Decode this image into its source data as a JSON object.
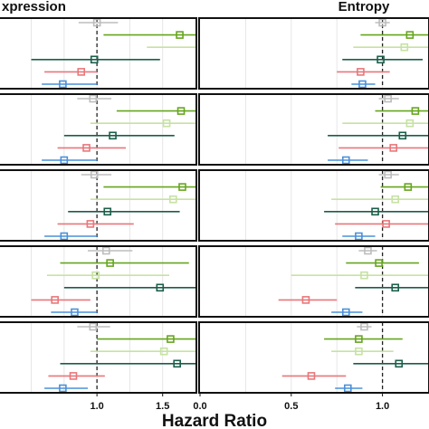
{
  "chart_data": {
    "type": "forest",
    "xlabel": "Hazard Ratio",
    "reference_line": 1.0,
    "grid": true,
    "series_colors": [
      "#bdbdbd",
      "#66a61e",
      "#c6e2a3",
      "#1b5e4a",
      "#e8777a",
      "#4a90d9"
    ],
    "panels": [
      {
        "title": "xpression",
        "xlim": [
          0.2,
          1.75
        ],
        "ticks": [
          {
            "value": 1.0,
            "label": "1.0"
          },
          {
            "value": 1.5,
            "label": "1.5"
          }
        ],
        "rows": [
          [
            {
              "hr": 1.0,
              "lo": 0.86,
              "hi": 1.16
            },
            {
              "hr": 1.63,
              "lo": 1.05,
              "hi": 2.4
            },
            {
              "hr": 1.84,
              "lo": 1.38,
              "hi": 2.4
            },
            {
              "hr": 0.98,
              "lo": 0.5,
              "hi": 1.48
            },
            {
              "hr": 0.88,
              "lo": 0.6,
              "hi": 1.0
            },
            {
              "hr": 0.74,
              "lo": 0.58,
              "hi": 1.0
            }
          ],
          [
            {
              "hr": 0.97,
              "lo": 0.85,
              "hi": 1.11
            },
            {
              "hr": 1.64,
              "lo": 1.15,
              "hi": 2.4
            },
            {
              "hr": 1.53,
              "lo": 0.95,
              "hi": 2.4
            },
            {
              "hr": 1.12,
              "lo": 0.75,
              "hi": 1.59
            },
            {
              "hr": 0.92,
              "lo": 0.7,
              "hi": 1.22
            },
            {
              "hr": 0.75,
              "lo": 0.58,
              "hi": 1.0
            }
          ],
          [
            {
              "hr": 0.98,
              "lo": 0.88,
              "hi": 1.11
            },
            {
              "hr": 1.65,
              "lo": 1.05,
              "hi": 2.4
            },
            {
              "hr": 1.58,
              "lo": 0.95,
              "hi": 2.4
            },
            {
              "hr": 1.08,
              "lo": 0.78,
              "hi": 1.63
            },
            {
              "hr": 0.95,
              "lo": 0.7,
              "hi": 1.28
            },
            {
              "hr": 0.75,
              "lo": 0.6,
              "hi": 1.0
            }
          ],
          [
            {
              "hr": 1.07,
              "lo": 0.93,
              "hi": 1.27
            },
            {
              "hr": 1.1,
              "lo": 0.72,
              "hi": 1.7
            },
            {
              "hr": 0.99,
              "lo": 0.62,
              "hi": 1.55
            },
            {
              "hr": 1.48,
              "lo": 0.75,
              "hi": 2.4
            },
            {
              "hr": 0.68,
              "lo": 0.5,
              "hi": 0.95
            },
            {
              "hr": 0.83,
              "lo": 0.65,
              "hi": 1.0
            }
          ],
          [
            {
              "hr": 0.97,
              "lo": 0.85,
              "hi": 1.1
            },
            {
              "hr": 1.56,
              "lo": 1.0,
              "hi": 2.4
            },
            {
              "hr": 1.51,
              "lo": 0.95,
              "hi": 2.4
            },
            {
              "hr": 1.61,
              "lo": 0.72,
              "hi": 2.4
            },
            {
              "hr": 0.82,
              "lo": 0.63,
              "hi": 1.06
            },
            {
              "hr": 0.74,
              "lo": 0.6,
              "hi": 0.93
            }
          ]
        ]
      },
      {
        "title": "Entropy",
        "xlim": [
          0.0,
          1.25
        ],
        "ticks": [
          {
            "value": 0.0,
            "label": "0.0"
          },
          {
            "value": 0.5,
            "label": "0.5"
          },
          {
            "value": 1.0,
            "label": "1.0"
          }
        ],
        "rows": [
          [
            {
              "hr": 1.0,
              "lo": 0.96,
              "hi": 1.04
            },
            {
              "hr": 1.15,
              "lo": 0.88,
              "hi": 1.5
            },
            {
              "hr": 1.12,
              "lo": 0.84,
              "hi": 1.5
            },
            {
              "hr": 0.99,
              "lo": 0.78,
              "hi": 1.22
            },
            {
              "hr": 0.88,
              "lo": 0.75,
              "hi": 1.04
            },
            {
              "hr": 0.89,
              "lo": 0.83,
              "hi": 0.96
            }
          ],
          [
            {
              "hr": 1.03,
              "lo": 0.98,
              "hi": 1.09
            },
            {
              "hr": 1.18,
              "lo": 0.96,
              "hi": 1.5
            },
            {
              "hr": 1.15,
              "lo": 0.78,
              "hi": 1.5
            },
            {
              "hr": 1.11,
              "lo": 0.7,
              "hi": 1.5
            },
            {
              "hr": 1.06,
              "lo": 0.76,
              "hi": 1.4
            },
            {
              "hr": 0.8,
              "lo": 0.7,
              "hi": 0.92
            }
          ],
          [
            {
              "hr": 1.03,
              "lo": 0.98,
              "hi": 1.09
            },
            {
              "hr": 1.14,
              "lo": 0.99,
              "hi": 1.5
            },
            {
              "hr": 1.07,
              "lo": 0.72,
              "hi": 1.5
            },
            {
              "hr": 0.96,
              "lo": 0.68,
              "hi": 1.28
            },
            {
              "hr": 1.02,
              "lo": 0.74,
              "hi": 1.35
            },
            {
              "hr": 0.87,
              "lo": 0.78,
              "hi": 0.96
            }
          ],
          [
            {
              "hr": 0.92,
              "lo": 0.87,
              "hi": 0.97
            },
            {
              "hr": 0.98,
              "lo": 0.8,
              "hi": 1.2
            },
            {
              "hr": 0.9,
              "lo": 0.5,
              "hi": 1.3
            },
            {
              "hr": 1.07,
              "lo": 0.85,
              "hi": 1.35
            },
            {
              "hr": 0.58,
              "lo": 0.43,
              "hi": 0.75
            },
            {
              "hr": 0.8,
              "lo": 0.72,
              "hi": 0.89
            }
          ],
          [
            {
              "hr": 0.9,
              "lo": 0.86,
              "hi": 0.94
            },
            {
              "hr": 0.87,
              "lo": 0.68,
              "hi": 1.11
            },
            {
              "hr": 0.87,
              "lo": 0.72,
              "hi": 1.06
            },
            {
              "hr": 1.09,
              "lo": 0.84,
              "hi": 1.4
            },
            {
              "hr": 0.61,
              "lo": 0.45,
              "hi": 0.8
            },
            {
              "hr": 0.81,
              "lo": 0.74,
              "hi": 0.89
            }
          ]
        ]
      }
    ]
  }
}
